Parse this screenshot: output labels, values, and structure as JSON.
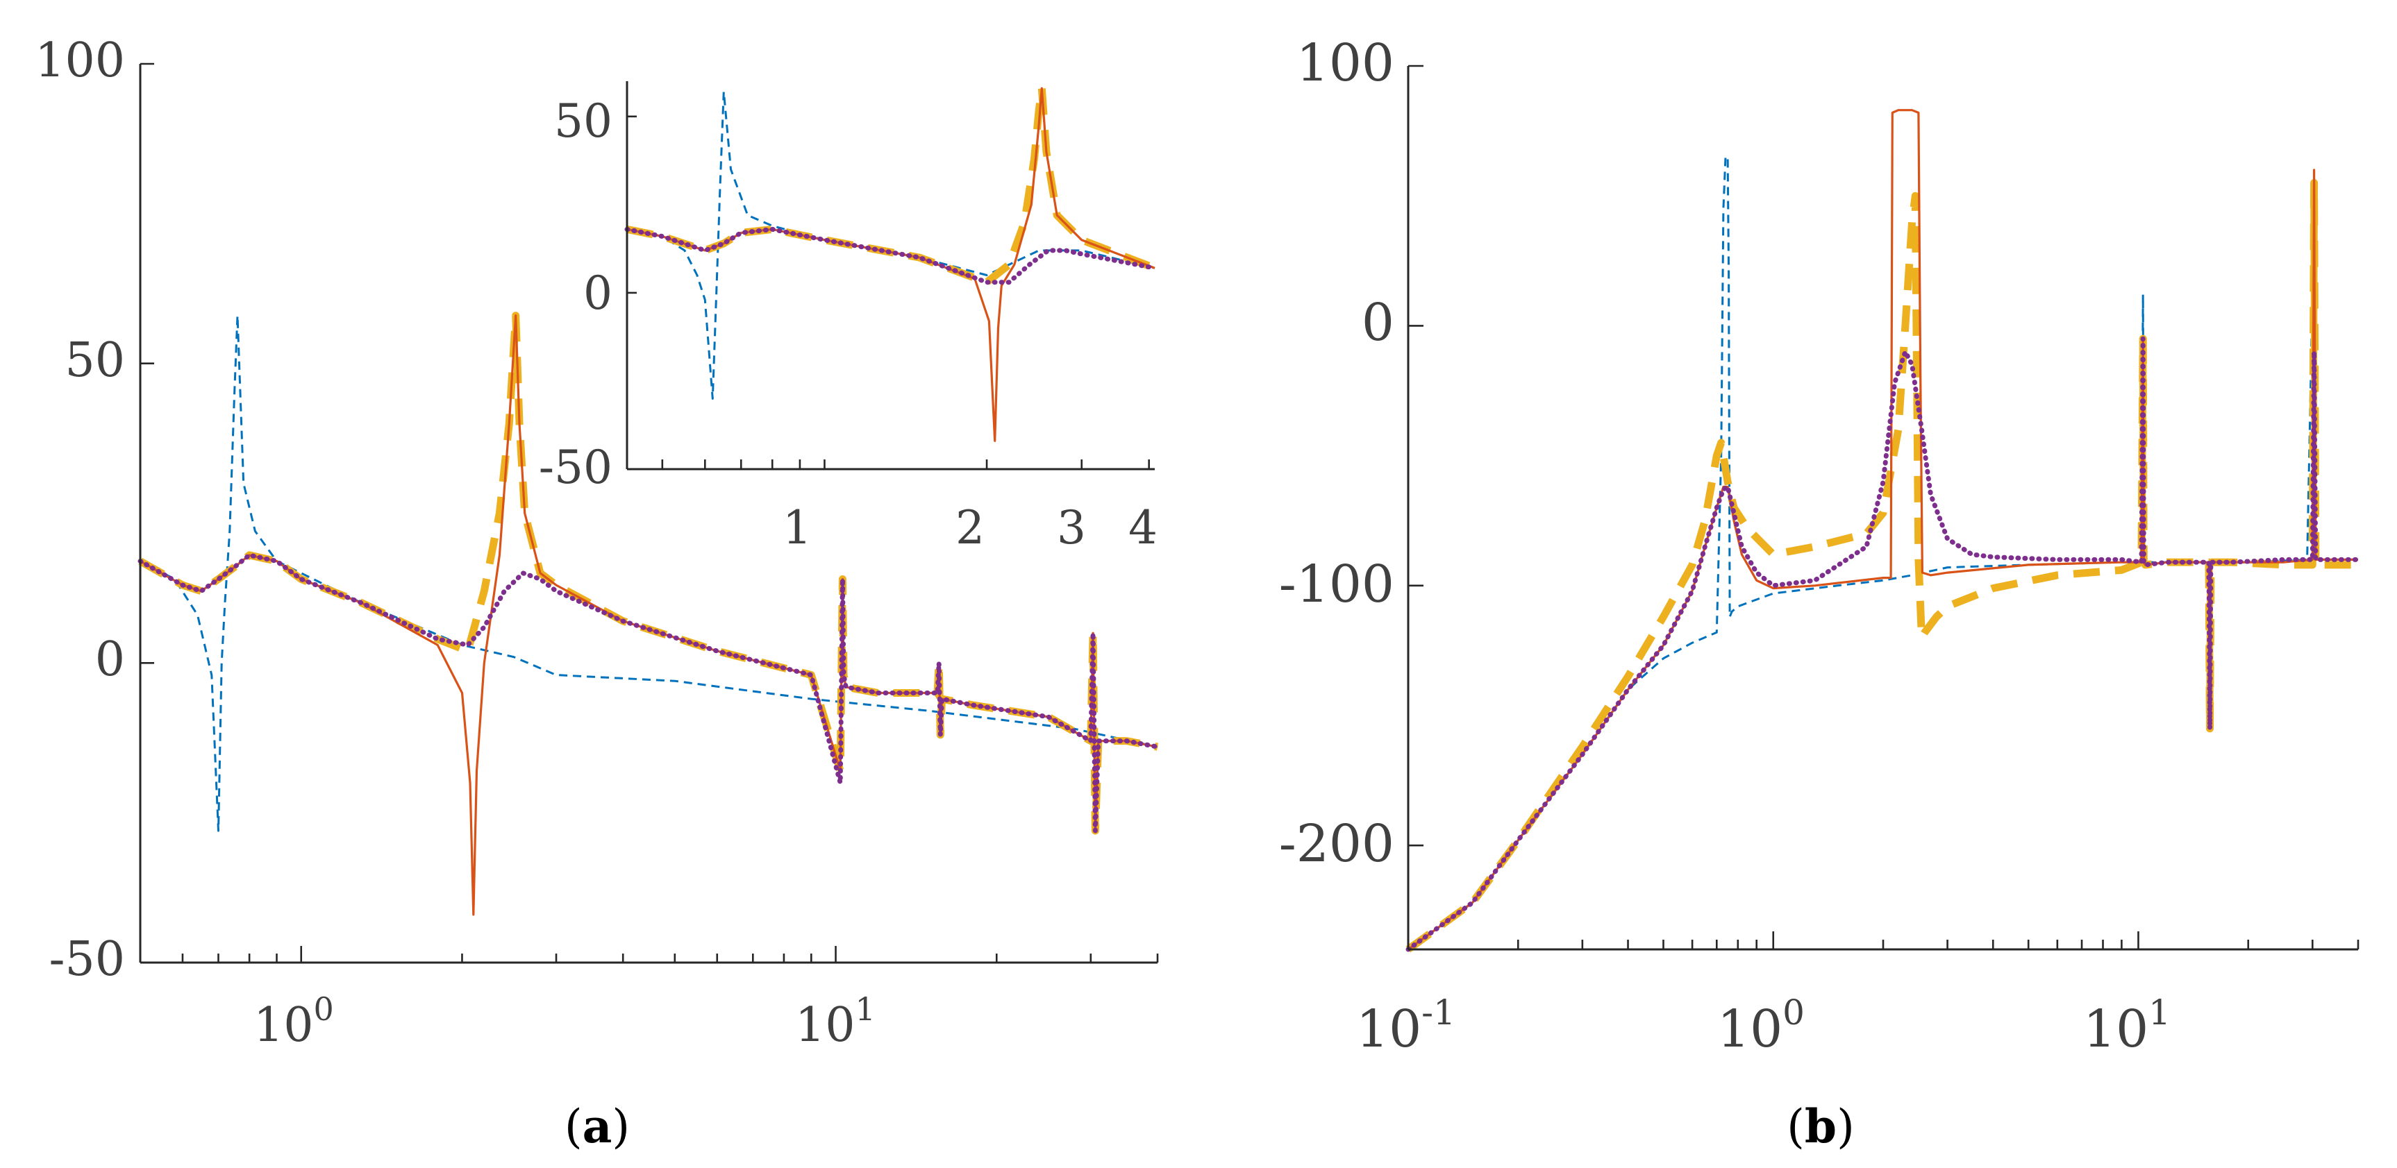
{
  "colors": {
    "series_blue": "#0072BD",
    "series_red": "#D95319",
    "series_yellow": "#EDB120",
    "series_purple": "#7E2F8E",
    "axis": "#262626",
    "tick_text": "#404040"
  },
  "chart_data": [
    {
      "id": "a",
      "type": "line",
      "caption": "(a)",
      "caption_open": "(",
      "caption_letter": "a",
      "caption_close": ")",
      "x_scale": "log",
      "xlim": [
        0.5,
        40
      ],
      "ylim": [
        -50,
        100
      ],
      "yticks": [
        {
          "value": -50,
          "label": "-50"
        },
        {
          "value": 0,
          "label": "0"
        },
        {
          "value": 50,
          "label": "50"
        },
        {
          "value": 100,
          "label": "100"
        }
      ],
      "xticks": [
        {
          "value": 1,
          "base": "10",
          "exp": "0"
        },
        {
          "value": 10,
          "base": "10",
          "exp": "1"
        }
      ],
      "series": [
        {
          "name": "blue-dashed",
          "color": "#0072BD",
          "style": "dashed",
          "x": [
            0.5,
            0.58,
            0.64,
            0.68,
            0.7,
            0.71,
            0.72,
            0.735,
            0.75,
            0.76,
            0.78,
            0.82,
            0.9,
            1.0,
            1.3,
            2.0,
            2.5,
            3.0,
            5.0,
            9.0,
            15.0,
            28.0,
            40.0
          ],
          "y": [
            17,
            14,
            8,
            -2,
            -28,
            0,
            10,
            22,
            45,
            58,
            30,
            22,
            17,
            15,
            10,
            3,
            1,
            -2,
            -3,
            -6,
            -8,
            -11,
            -14
          ]
        },
        {
          "name": "red-solid",
          "color": "#D95319",
          "style": "solid",
          "x": [
            0.5,
            0.6,
            0.65,
            0.7,
            0.75,
            0.8,
            0.9,
            1.0,
            1.3,
            1.8,
            2.0,
            2.07,
            2.1,
            2.13,
            2.2,
            2.35,
            2.45,
            2.52,
            2.56,
            2.62,
            2.8,
            3.0,
            4.0,
            6.0,
            9.0,
            10.2,
            10.3,
            10.35,
            10.45,
            12.0,
            15.5,
            15.6,
            15.7,
            15.8,
            18.0,
            25.0,
            30.0,
            30.3,
            30.6,
            31.0,
            35.0,
            40.0
          ],
          "y": [
            17,
            13,
            12,
            14,
            16,
            18,
            17,
            14,
            10,
            3,
            -5,
            -20,
            -42,
            -18,
            0,
            18,
            40,
            58,
            40,
            25,
            15,
            13,
            7,
            2,
            -2,
            -18,
            14,
            -2,
            -4,
            -5,
            -5,
            0,
            -12,
            -6,
            -7,
            -9,
            -13,
            5,
            -28,
            -13,
            -13,
            -14
          ]
        },
        {
          "name": "yellow-dashed",
          "color": "#EDB120",
          "style": "thick-dashed",
          "x": [
            0.5,
            0.6,
            0.65,
            0.7,
            0.75,
            0.8,
            0.9,
            1.0,
            1.3,
            1.8,
            2.05,
            2.2,
            2.35,
            2.45,
            2.52,
            2.56,
            2.62,
            2.8,
            3.0,
            4.0,
            6.0,
            9.0,
            10.2,
            10.3,
            10.35,
            10.45,
            12.0,
            15.5,
            15.6,
            15.7,
            15.8,
            18.0,
            25.0,
            30.0,
            30.3,
            30.6,
            31.0,
            35.0,
            40.0
          ],
          "y": [
            17,
            13,
            12,
            14,
            16,
            18,
            17,
            14,
            10,
            4,
            2,
            12,
            25,
            40,
            58,
            40,
            25,
            15,
            13,
            7,
            2,
            -2,
            -18,
            14,
            -2,
            -4,
            -5,
            -5,
            0,
            -12,
            -6,
            -7,
            -9,
            -13,
            5,
            -28,
            -13,
            -13,
            -14
          ]
        },
        {
          "name": "purple-dotted",
          "color": "#7E2F8E",
          "style": "dotted",
          "x": [
            0.5,
            0.6,
            0.65,
            0.7,
            0.75,
            0.8,
            0.9,
            1.0,
            1.3,
            1.8,
            2.05,
            2.2,
            2.4,
            2.6,
            2.8,
            3.0,
            4.0,
            6.0,
            9.0,
            10.2,
            10.3,
            10.35,
            10.45,
            12.0,
            15.5,
            15.6,
            15.7,
            15.8,
            18.0,
            25.0,
            30.0,
            30.3,
            30.6,
            31.0,
            35.0,
            40.0
          ],
          "y": [
            17,
            13,
            12,
            14,
            16,
            18,
            17,
            14,
            10,
            4,
            3,
            6,
            12,
            15,
            14,
            12,
            7,
            2,
            -2,
            -20,
            14,
            -2,
            -4,
            -5,
            -5,
            0,
            -12,
            -6,
            -7,
            -9,
            -13,
            5,
            -28,
            -13,
            -13,
            -14
          ]
        }
      ],
      "inset": {
        "type": "line",
        "x_scale": "log",
        "xlim": [
          0.43,
          4.1
        ],
        "ylim": [
          -50,
          60
        ],
        "yticks": [
          {
            "value": -50,
            "label": "-50"
          },
          {
            "value": 0,
            "label": "0"
          },
          {
            "value": 50,
            "label": "50"
          }
        ],
        "xticks": [
          {
            "value": 1,
            "label": "1"
          },
          {
            "value": 2,
            "label": "2"
          },
          {
            "value": 3,
            "label": "3"
          },
          {
            "value": 4,
            "label": "4"
          }
        ],
        "series": [
          {
            "name": "inset-blue-dashed",
            "color": "#0072BD",
            "style": "dashed",
            "x": [
              0.43,
              0.5,
              0.55,
              0.58,
              0.6,
              0.62,
              0.63,
              0.64,
              0.65,
              0.67,
              0.72,
              0.8,
              1.0,
              1.5,
              2.0,
              2.5,
              3.0,
              4.1
            ],
            "y": [
              18,
              16,
              12,
              5,
              -2,
              -30,
              0,
              30,
              57,
              35,
              22,
              19,
              15,
              10,
              5,
              12,
              12,
              7
            ]
          },
          {
            "name": "inset-red-solid",
            "color": "#D95319",
            "style": "solid",
            "x": [
              0.43,
              0.5,
              0.6,
              0.65,
              0.7,
              0.8,
              1.0,
              1.5,
              1.9,
              2.02,
              2.07,
              2.1,
              2.13,
              2.25,
              2.42,
              2.5,
              2.53,
              2.58,
              2.7,
              3.0,
              4.1
            ],
            "y": [
              18,
              16,
              12,
              14,
              17,
              18,
              15,
              10,
              4,
              -8,
              -42,
              -10,
              2,
              8,
              25,
              48,
              58,
              40,
              22,
              15,
              7
            ]
          },
          {
            "name": "inset-yellow-dashed",
            "color": "#EDB120",
            "style": "thick-dashed",
            "x": [
              0.43,
              0.5,
              0.6,
              0.65,
              0.7,
              0.8,
              1.0,
              1.5,
              2.0,
              2.2,
              2.35,
              2.45,
              2.5,
              2.53,
              2.58,
              2.7,
              3.0,
              4.1
            ],
            "y": [
              18,
              16,
              12,
              14,
              17,
              18,
              15,
              10,
              3,
              8,
              20,
              38,
              52,
              58,
              40,
              22,
              15,
              7
            ]
          },
          {
            "name": "inset-purple-dotted",
            "color": "#7E2F8E",
            "style": "dotted",
            "x": [
              0.43,
              0.5,
              0.6,
              0.65,
              0.7,
              0.8,
              1.0,
              1.5,
              2.0,
              2.2,
              2.4,
              2.6,
              2.8,
              3.0,
              4.1
            ],
            "y": [
              18,
              16,
              12,
              14,
              17,
              18,
              15,
              10,
              3,
              3,
              8,
              12,
              12,
              11,
              7
            ]
          }
        ]
      }
    },
    {
      "id": "b",
      "type": "line",
      "caption": "(b)",
      "caption_open": "(",
      "caption_letter": "b",
      "caption_close": ")",
      "x_scale": "log",
      "xlim": [
        0.1,
        40
      ],
      "ylim": [
        -240,
        100
      ],
      "yticks": [
        {
          "value": -200,
          "label": "-200"
        },
        {
          "value": -100,
          "label": "-100"
        },
        {
          "value": 0,
          "label": "0"
        },
        {
          "value": 100,
          "label": "100"
        }
      ],
      "xticks": [
        {
          "value": 0.1,
          "base": "10",
          "exp": "-1"
        },
        {
          "value": 1,
          "base": "10",
          "exp": "0"
        },
        {
          "value": 10,
          "base": "10",
          "exp": "1"
        }
      ],
      "series": [
        {
          "name": "blue-dashed",
          "color": "#0072BD",
          "style": "dashed",
          "x": [
            0.1,
            0.15,
            0.2,
            0.3,
            0.4,
            0.5,
            0.6,
            0.7,
            0.72,
            0.73,
            0.74,
            0.75,
            0.755,
            0.76,
            0.77,
            0.8,
            1.0,
            1.5,
            2.0,
            2.4,
            3.0,
            5.0,
            9.0,
            10.2,
            10.3,
            10.35,
            10.45,
            12.0,
            15.0,
            20.0,
            29.0,
            30.0,
            30.5,
            31.0,
            40.0
          ],
          "y": [
            -240,
            -222,
            -198,
            -165,
            -140,
            -128,
            -122,
            -118,
            -50,
            45,
            65,
            65,
            20,
            -112,
            -110,
            -108,
            -103,
            -100,
            -98,
            -96,
            -93,
            -92,
            -91,
            -91,
            12,
            -91,
            -91,
            -91,
            -91,
            -91,
            -90,
            12,
            -90,
            -90,
            -90
          ]
        },
        {
          "name": "red-solid",
          "color": "#D95319",
          "style": "solid",
          "x": [
            0.1,
            0.15,
            0.2,
            0.3,
            0.4,
            0.5,
            0.6,
            0.65,
            0.7,
            0.73,
            0.75,
            0.78,
            0.82,
            0.9,
            1.0,
            1.3,
            2.0,
            2.1,
            2.12,
            2.2,
            2.4,
            2.5,
            2.53,
            2.56,
            2.7,
            3.0,
            5.0,
            9.0,
            10.2,
            10.3,
            10.35,
            10.45,
            12.0,
            15.5,
            15.6,
            15.7,
            15.8,
            18.0,
            25.0,
            30.0,
            30.3,
            30.6,
            31.0,
            35.0,
            40.0
          ],
          "y": [
            -240,
            -222,
            -198,
            -165,
            -140,
            -123,
            -102,
            -85,
            -70,
            -62,
            -62,
            -75,
            -88,
            -98,
            -101,
            -100,
            -97,
            -97,
            82,
            83,
            83,
            82,
            -20,
            -95,
            -96,
            -95,
            -92,
            -91,
            -91,
            -5,
            -91,
            -92,
            -91,
            -91,
            -91,
            -155,
            -91,
            -91,
            -91,
            -90,
            60,
            -90,
            -90,
            -90,
            -90
          ]
        },
        {
          "name": "yellow-dashed",
          "color": "#EDB120",
          "style": "thick-dashed",
          "x": [
            0.1,
            0.15,
            0.2,
            0.3,
            0.4,
            0.5,
            0.6,
            0.65,
            0.7,
            0.72,
            0.75,
            0.78,
            0.85,
            1.0,
            1.3,
            1.8,
            2.0,
            2.2,
            2.3,
            2.4,
            2.45,
            2.5,
            2.55,
            2.6,
            2.8,
            3.0,
            4.0,
            6.0,
            9.0,
            10.2,
            10.3,
            10.35,
            10.45,
            12.0,
            15.5,
            15.6,
            15.7,
            15.8,
            18.0,
            25.0,
            30.0,
            30.3,
            30.6,
            31.0,
            35.0,
            40.0
          ],
          "y": [
            -240,
            -222,
            -198,
            -162,
            -135,
            -112,
            -92,
            -75,
            -50,
            -45,
            -60,
            -70,
            -78,
            -88,
            -85,
            -80,
            -72,
            -40,
            0,
            40,
            50,
            -90,
            -120,
            -118,
            -112,
            -108,
            -101,
            -96,
            -94,
            -91,
            -5,
            -91,
            -92,
            -91,
            -91,
            -91,
            -155,
            -91,
            -91,
            -92,
            -92,
            55,
            -92,
            -92,
            -92,
            -92
          ]
        },
        {
          "name": "purple-dotted",
          "color": "#7E2F8E",
          "style": "dotted",
          "x": [
            0.1,
            0.15,
            0.2,
            0.3,
            0.4,
            0.5,
            0.6,
            0.65,
            0.7,
            0.73,
            0.75,
            0.78,
            0.82,
            0.9,
            1.0,
            1.3,
            1.8,
            2.0,
            2.15,
            2.3,
            2.4,
            2.55,
            2.7,
            3.0,
            3.5,
            4.0,
            6.0,
            9.0,
            10.2,
            10.3,
            10.35,
            10.45,
            12.0,
            15.5,
            15.6,
            15.7,
            15.8,
            18.0,
            25.0,
            30.0,
            30.3,
            30.6,
            31.0,
            35.0,
            40.0
          ],
          "y": [
            -240,
            -222,
            -198,
            -165,
            -140,
            -123,
            -102,
            -85,
            -70,
            -63,
            -62,
            -72,
            -85,
            -95,
            -100,
            -98,
            -85,
            -60,
            -22,
            -10,
            -15,
            -40,
            -65,
            -82,
            -88,
            -89,
            -90,
            -90,
            -91,
            -5,
            -91,
            -92,
            -91,
            -91,
            -91,
            -155,
            -91,
            -91,
            -90,
            -90,
            -10,
            -90,
            -90,
            -90,
            -90
          ]
        }
      ]
    }
  ]
}
